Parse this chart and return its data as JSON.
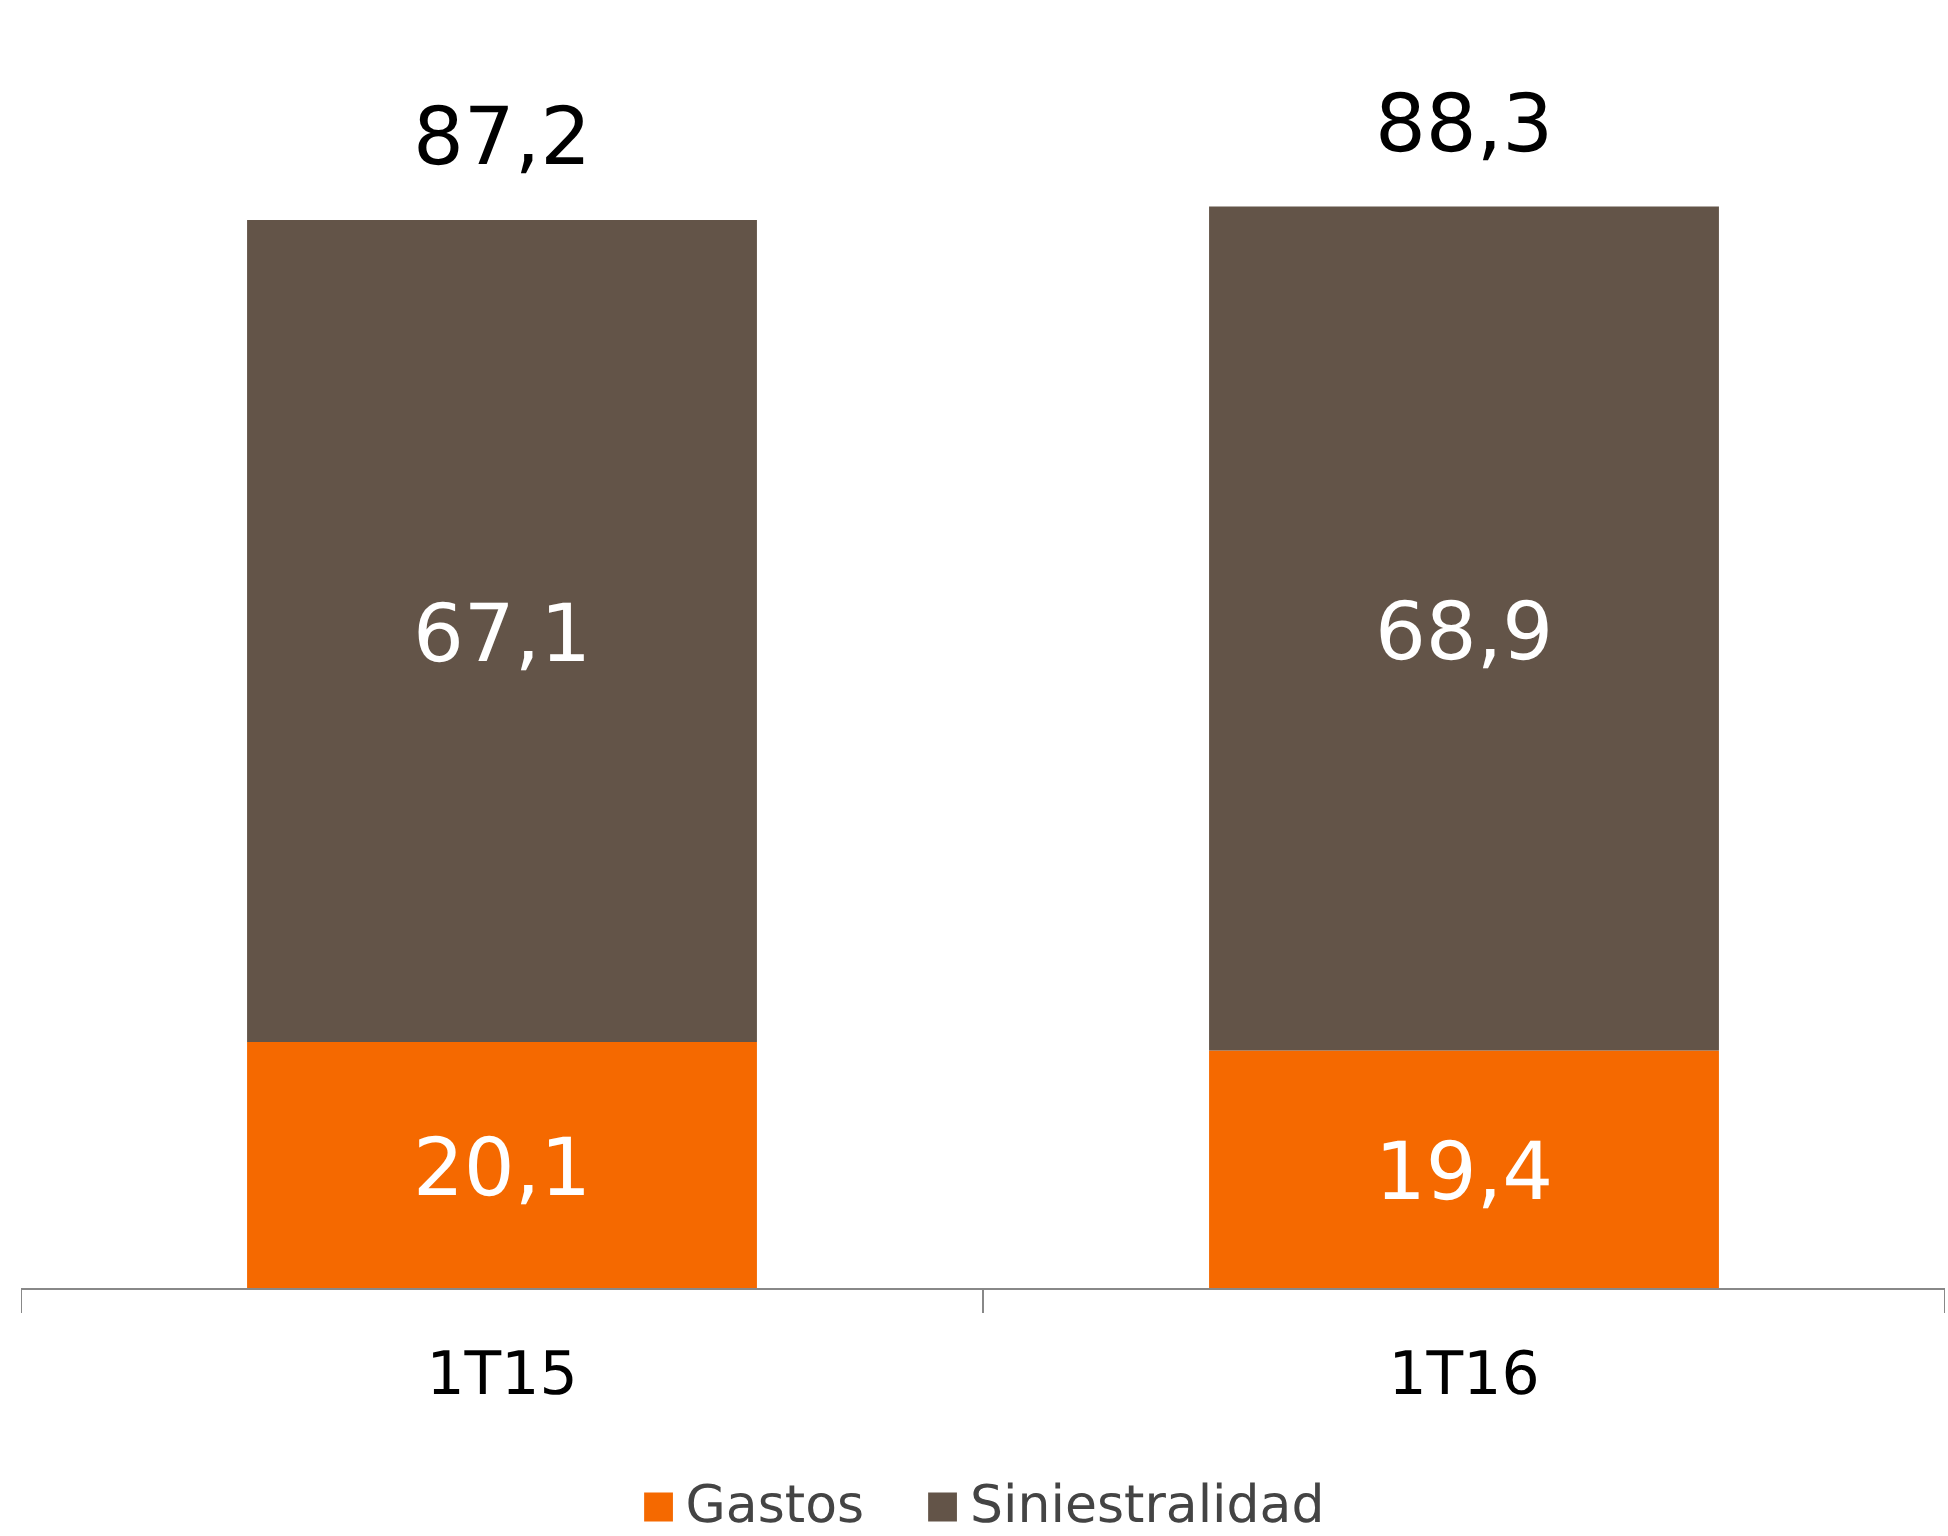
{
  "chart_data": {
    "type": "bar",
    "stacked": true,
    "categories": [
      "1T15",
      "1T16"
    ],
    "series": [
      {
        "name": "Gastos",
        "color": "#f56900",
        "values": [
          20.1,
          19.4
        ],
        "value_labels": [
          "20,1",
          "19,4"
        ]
      },
      {
        "name": "Siniestralidad",
        "color": "#635448",
        "values": [
          67.1,
          68.9
        ],
        "value_labels": [
          "67,1",
          "68,9"
        ]
      }
    ],
    "totals": [
      "87,2",
      "88,3"
    ],
    "legend": "bottom"
  }
}
